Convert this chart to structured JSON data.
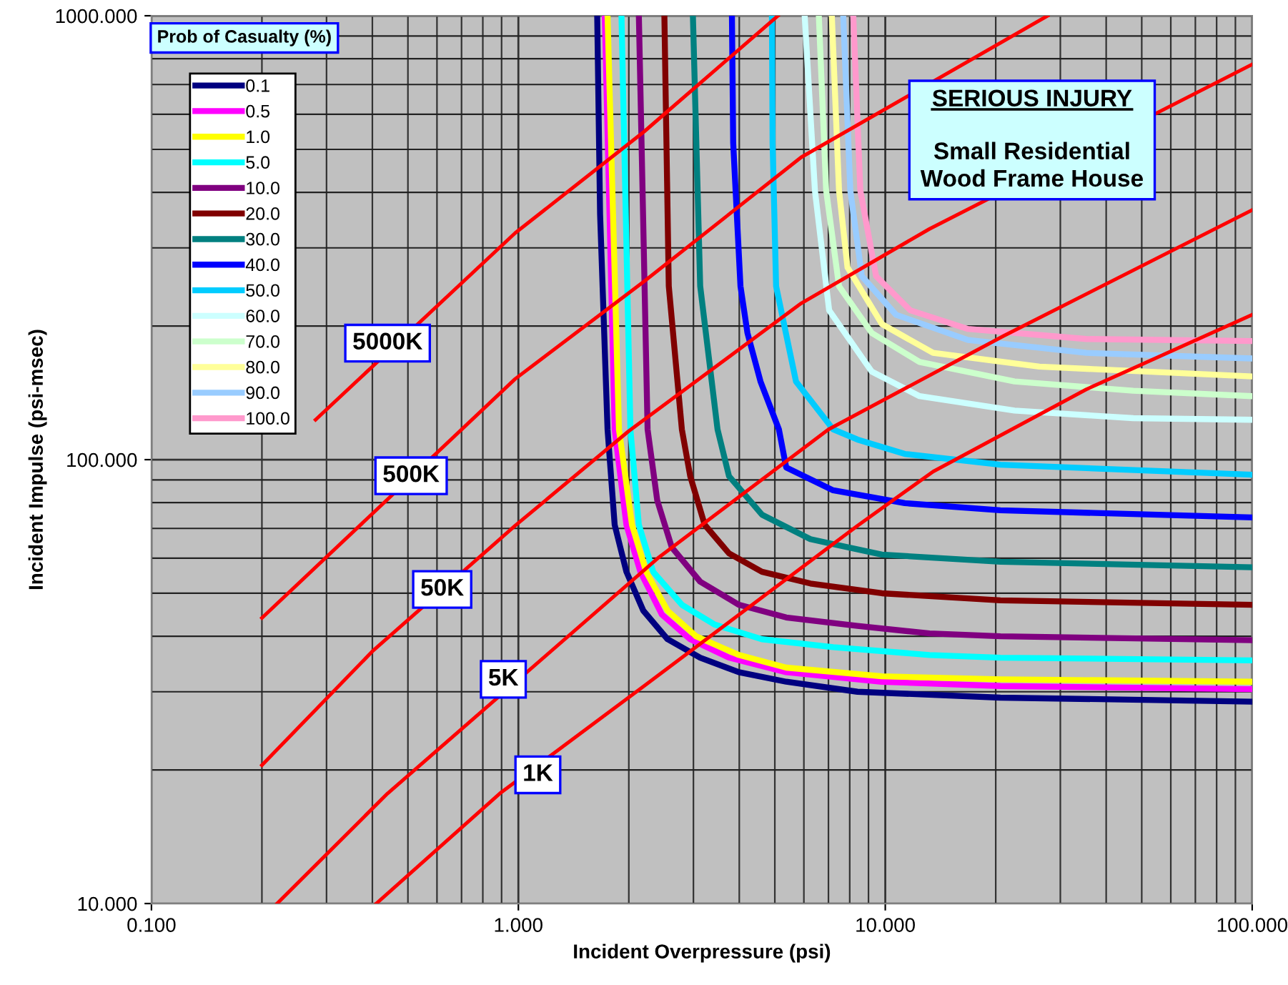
{
  "chart_data": {
    "type": "line",
    "title": "SERIOUS INJURY",
    "subtitle": "Small Residential\nWood Frame House",
    "xlabel": "Incident Overpressure (psi)",
    "ylabel": "Incident Impulse (psi-msec)",
    "legend_title": "Prob of Casualty (%)",
    "log": "xy",
    "xlim": [
      0.1,
      100
    ],
    "ylim": [
      10,
      1000
    ],
    "xticks": [
      {
        "value": 0.1,
        "label": "0.100"
      },
      {
        "value": 1,
        "label": "1.000"
      },
      {
        "value": 10,
        "label": "10.000"
      },
      {
        "value": 100,
        "label": "100.000"
      }
    ],
    "yticks": [
      {
        "value": 10,
        "label": "10.000"
      },
      {
        "value": 100,
        "label": "100.000"
      },
      {
        "value": 1000,
        "label": "1000.000"
      }
    ],
    "grid": true,
    "legend": "top left",
    "marker": "none",
    "line_style": "solid",
    "series": [
      {
        "name": "0.1",
        "color": "#000080",
        "x": [
          1.64,
          1.67,
          1.75,
          1.83,
          1.97,
          2.19,
          2.55,
          3.13,
          3.99,
          5.37,
          8.4,
          20.6,
          100
        ],
        "values": [
          1000,
          357,
          117,
          71.3,
          55.9,
          45.7,
          39.4,
          35.8,
          33.2,
          31.6,
          30.0,
          29.1,
          28.5
        ]
      },
      {
        "name": "0.5",
        "color": "#ff00ff",
        "x": [
          1.72,
          1.83,
          1.97,
          2.15,
          2.46,
          2.94,
          3.75,
          5.37,
          9.79,
          20.6,
          100
        ],
        "values": [
          1000,
          117,
          71.3,
          55.9,
          44.8,
          39.4,
          35.8,
          33.2,
          31.6,
          30.9,
          30.4
        ]
      },
      {
        "name": "1.0",
        "color": "#ffff00",
        "x": [
          1.75,
          1.88,
          2.04,
          2.23,
          2.55,
          3.05,
          3.99,
          5.37,
          9.79,
          20.6,
          100
        ],
        "values": [
          1000,
          117,
          71.3,
          55.9,
          45.7,
          40.0,
          36.3,
          34.0,
          32.5,
          32.0,
          31.6
        ]
      },
      {
        "name": "5.0",
        "color": "#00ffff",
        "x": [
          1.91,
          2.02,
          2.13,
          2.33,
          2.79,
          3.43,
          4.61,
          7.21,
          13.2,
          20.6,
          100
        ],
        "values": [
          1000,
          117,
          71.3,
          55.9,
          47.1,
          42.5,
          39.4,
          37.8,
          36.3,
          35.8,
          35.3
        ]
      },
      {
        "name": "10.0",
        "color": "#800080",
        "x": [
          2.13,
          2.25,
          2.39,
          2.62,
          3.13,
          3.99,
          5.37,
          8.4,
          13.2,
          20.6,
          100
        ],
        "values": [
          1000,
          117,
          81.0,
          63.4,
          53.1,
          47.1,
          44.1,
          42.2,
          40.6,
          40.0,
          39.2
        ]
      },
      {
        "name": "20.0",
        "color": "#800000",
        "x": [
          2.5,
          2.57,
          2.79,
          2.94,
          3.22,
          3.75,
          4.61,
          6.25,
          9.79,
          20.6,
          100
        ],
        "values": [
          1000,
          246,
          117,
          91.8,
          71.3,
          61.5,
          55.9,
          52.6,
          50.0,
          48.2,
          47.1
        ]
      },
      {
        "name": "30.0",
        "color": "#008080",
        "x": [
          2.99,
          3.13,
          3.49,
          3.75,
          4.61,
          6.25,
          9.79,
          20.6,
          100
        ],
        "values": [
          1000,
          246,
          117,
          91.8,
          75.2,
          66.2,
          61.1,
          58.9,
          57.2
        ]
      },
      {
        "name": "40.0",
        "color": "#0000ff",
        "x": [
          3.82,
          3.85,
          4.03,
          4.21,
          4.57,
          5.13,
          5.37,
          7.21,
          11.3,
          20.6,
          100
        ],
        "values": [
          1000,
          517,
          246,
          193,
          150,
          117,
          96.0,
          85.3,
          79.8,
          76.9,
          74.1
        ]
      },
      {
        "name": "50.0",
        "color": "#00ccff",
        "x": [
          4.91,
          4.93,
          5.04,
          5.71,
          7.21,
          8.4,
          11.3,
          20.6,
          100
        ],
        "values": [
          1000,
          517,
          246,
          150,
          117,
          111,
          103,
          97.4,
          92.5
        ]
      },
      {
        "name": "60.0",
        "color": "#ccffff",
        "x": [
          6.03,
          6.43,
          7.03,
          9.18,
          12.4,
          22.5,
          47.4,
          100
        ],
        "values": [
          1000,
          404,
          217,
          158,
          139,
          129,
          124,
          123
        ]
      },
      {
        "name": "70.0",
        "color": "#ccffcc",
        "x": [
          6.59,
          6.9,
          7.48,
          9.18,
          12.4,
          22.5,
          47.4,
          100
        ],
        "values": [
          1000,
          404,
          246,
          193,
          166,
          150,
          143,
          139
        ]
      },
      {
        "name": "80.0",
        "color": "#ffff99",
        "x": [
          7.15,
          7.48,
          7.89,
          9.79,
          13.5,
          26.3,
          100
        ],
        "values": [
          1000,
          404,
          271,
          202,
          174,
          162,
          154
        ]
      },
      {
        "name": "90.0",
        "color": "#99ccff",
        "x": [
          7.68,
          8.03,
          8.63,
          10.7,
          16.8,
          35.3,
          100
        ],
        "values": [
          1000,
          404,
          259,
          212,
          186,
          174,
          169
        ]
      },
      {
        "name": "100.0",
        "color": "#ff99cc",
        "x": [
          8.18,
          8.55,
          9.44,
          11.7,
          16.8,
          35.3,
          100
        ],
        "values": [
          1000,
          404,
          259,
          217,
          197,
          187,
          185
        ]
      },
      {
        "color": "#ff0000",
        "x": [
          0.28,
          0.98,
          2.2,
          5.1
        ],
        "values": [
          123,
          324,
          548,
          1000
        ]
      },
      {
        "color": "#ff0000",
        "x": [
          0.2,
          0.98,
          2.2,
          5.9,
          27.7
        ],
        "values": [
          44,
          152,
          252,
          480,
          1000
        ]
      },
      {
        "color": "#ff0000",
        "x": [
          0.2,
          0.4,
          0.98,
          2.0,
          5.9,
          13.2,
          100
        ],
        "values": [
          20.5,
          37,
          71,
          116,
          225,
          331,
          777
        ]
      },
      {
        "color": "#ff0000",
        "x": [
          0.22,
          0.44,
          2.4,
          7.0,
          21,
          100
        ],
        "values": [
          10,
          17.7,
          60,
          117,
          190,
          365
        ]
      },
      {
        "color": "#ff0000",
        "x": [
          0.41,
          0.89,
          2.2,
          8.4,
          13.5,
          35.3,
          100
        ],
        "values": [
          10,
          17.7,
          30.9,
          71,
          94,
          144,
          212
        ]
      }
    ],
    "annotations": [
      {
        "text": "5000K",
        "x": 0.44,
        "y": 183
      },
      {
        "text": "500K",
        "x": 0.51,
        "y": 92
      },
      {
        "text": "50K",
        "x": 0.62,
        "y": 51
      },
      {
        "text": "5K",
        "x": 0.91,
        "y": 32
      },
      {
        "text": "1K",
        "x": 1.13,
        "y": 19.5
      }
    ]
  }
}
